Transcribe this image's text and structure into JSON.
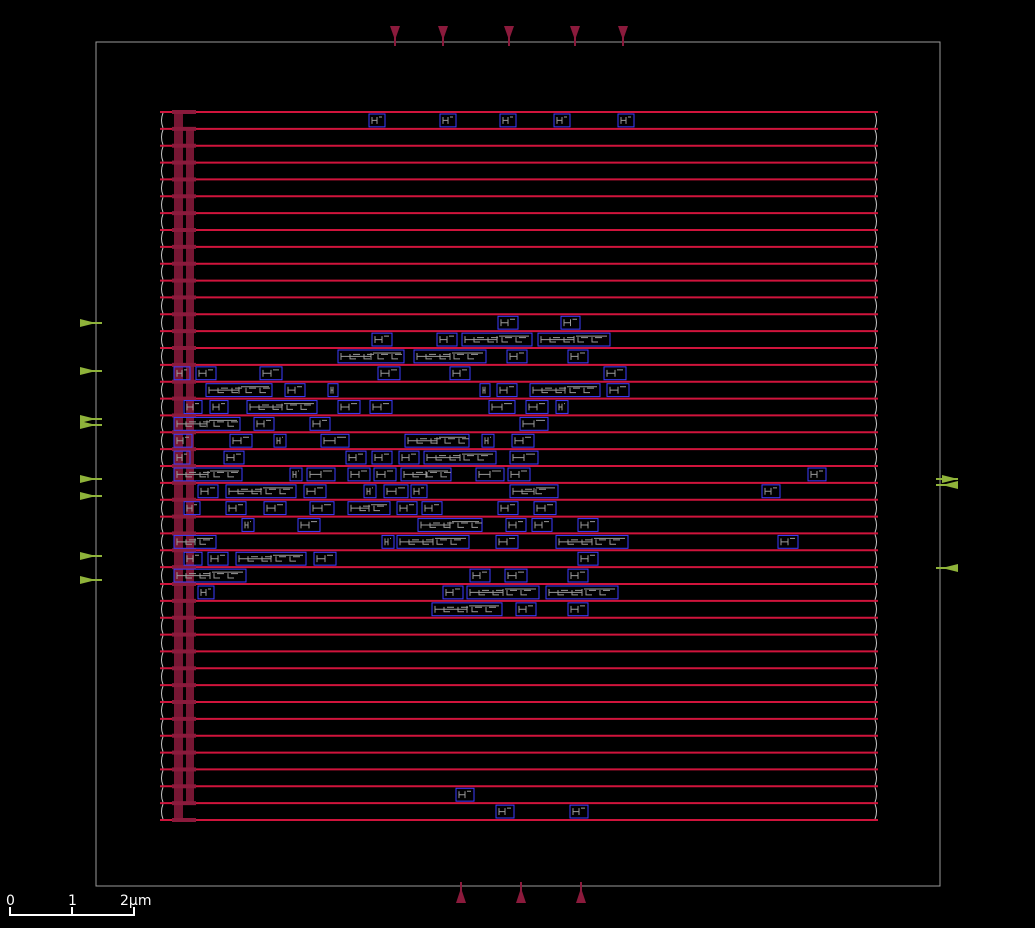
{
  "view": {
    "background": "#000000",
    "colors": {
      "die_outline": "#9a9a9a",
      "power_rail": "#d0143c",
      "rail_end": "#c8c8c8",
      "stripe": "#8b1a3c",
      "cell_outline": "#3c3cff",
      "cell_internal": "#9a9a9a",
      "pin_input": "#8fb33a",
      "pin_output": "#8b1a3c",
      "scale": "#ffffff"
    }
  },
  "scale_bar": {
    "labels": [
      "0",
      "1",
      "2μm"
    ]
  },
  "layout": {
    "rail_count": 43,
    "top_pin_count": 5,
    "bottom_pin_count": 3,
    "left_pin_count": 8,
    "right_pin_count": 3
  }
}
